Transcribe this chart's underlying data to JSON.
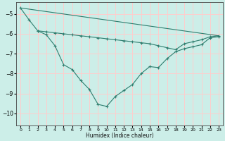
{
  "xlabel": "Humidex (Indice chaleur)",
  "background_color": "#cceee8",
  "grid_color": "#ffcccc",
  "line_color": "#2e7d6e",
  "xlim": [
    -0.5,
    23.5
  ],
  "ylim": [
    -10.6,
    -4.4
  ],
  "yticks": [
    -10,
    -9,
    -8,
    -7,
    -6,
    -5
  ],
  "xticks": [
    0,
    1,
    2,
    3,
    4,
    5,
    6,
    7,
    8,
    9,
    10,
    11,
    12,
    13,
    14,
    15,
    16,
    17,
    18,
    19,
    20,
    21,
    22,
    23
  ],
  "line1_x": [
    0,
    1,
    2,
    3,
    4,
    5,
    6,
    7,
    8,
    9,
    10,
    11,
    12,
    13,
    14,
    15,
    16,
    17,
    18,
    19,
    20,
    21,
    22,
    23
  ],
  "line1_y": [
    -4.7,
    -5.3,
    -5.85,
    -6.05,
    -6.6,
    -7.55,
    -7.8,
    -8.35,
    -8.8,
    -9.55,
    -9.65,
    -9.15,
    -8.85,
    -8.55,
    -8.0,
    -7.65,
    -7.7,
    -7.25,
    -6.9,
    -6.75,
    -6.65,
    -6.55,
    -6.2,
    -6.15
  ],
  "line2_x": [
    0,
    23
  ],
  "line2_y": [
    -4.7,
    -6.1
  ],
  "line3_x": [
    2,
    3,
    4,
    5,
    6,
    7,
    8,
    9,
    10,
    11,
    12,
    13,
    14,
    15,
    16,
    17,
    18,
    19,
    20,
    21,
    22,
    23
  ],
  "line3_y": [
    -5.85,
    -5.9,
    -5.95,
    -6.0,
    -6.05,
    -6.1,
    -6.15,
    -6.2,
    -6.25,
    -6.3,
    -6.35,
    -6.4,
    -6.45,
    -6.5,
    -6.6,
    -6.7,
    -6.8,
    -6.5,
    -6.4,
    -6.3,
    -6.15,
    -6.1
  ]
}
